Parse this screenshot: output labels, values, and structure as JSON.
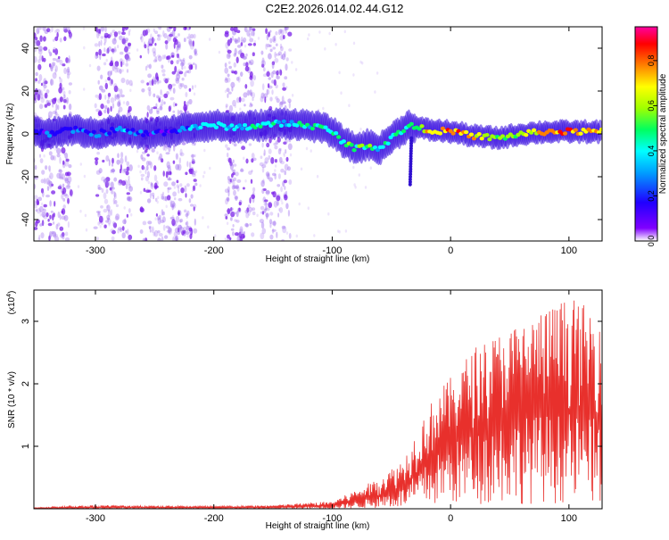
{
  "figure_title": "C2E2.2026.014.02.44.G12",
  "colors": {
    "snr_line": "#e8302c",
    "ridge_low": "#4b00ff",
    "ridge_mid": "#00c8ff",
    "ridge_high": "#ff1010",
    "speckle": "#a070f0"
  },
  "chart_data": [
    {
      "type": "heatmap",
      "name": "spectrogram",
      "xlabel": "Height of straight line (km)",
      "ylabel": "Frequency (Hz)",
      "xlim": [
        -352,
        128
      ],
      "ylim": [
        -50,
        50
      ],
      "xticks": [
        -300,
        -200,
        -100,
        0,
        100
      ],
      "xtick_labels": [
        "-300",
        "-200",
        "-100",
        "0",
        "100"
      ],
      "yticks": [
        -40,
        -20,
        0,
        20,
        40
      ],
      "ytick_labels": [
        "-40",
        "-20",
        "0",
        "20",
        "40"
      ],
      "colorbar": {
        "label": "Normalized spectral amplitude",
        "range": [
          0,
          0.95
        ],
        "ticks": [
          0.0,
          0.2,
          0.4,
          0.6,
          0.8
        ],
        "tick_labels": [
          "0.0",
          "0.2",
          "0.4",
          "0.6",
          "0.8"
        ]
      },
      "ridge": {
        "x": [
          -350,
          -340,
          -320,
          -300,
          -280,
          -260,
          -240,
          -220,
          -200,
          -180,
          -160,
          -140,
          -120,
          -110,
          -100,
          -90,
          -80,
          -70,
          -60,
          -50,
          -40,
          -35,
          -30,
          -20,
          0,
          20,
          40,
          60,
          80,
          100,
          128
        ],
        "freq": [
          1,
          0,
          2,
          0,
          2,
          0,
          1,
          3,
          4,
          3,
          4,
          5,
          4,
          3,
          1,
          -4,
          -7,
          -5,
          -7,
          -2,
          2,
          4,
          3,
          2,
          1,
          -1,
          -2,
          0,
          1,
          1,
          1
        ],
        "amplitude": [
          0.2,
          0.25,
          0.3,
          0.3,
          0.35,
          0.3,
          0.2,
          0.4,
          0.45,
          0.45,
          0.5,
          0.5,
          0.5,
          0.55,
          0.5,
          0.55,
          0.6,
          0.55,
          0.5,
          0.5,
          0.6,
          0.5,
          0.6,
          0.75,
          0.85,
          0.8,
          0.6,
          0.65,
          0.85,
          0.9,
          0.75
        ]
      },
      "noise_bands_x": [
        [
          -352,
          -320
        ],
        [
          -300,
          -270
        ],
        [
          -262,
          -215
        ],
        [
          -190,
          -165
        ],
        [
          -160,
          -135
        ]
      ]
    },
    {
      "type": "line",
      "name": "snr",
      "xlabel": "Height of straight line (km)",
      "ylabel": "SNR (10 * v/v)",
      "multiplier": "(x10",
      "multiplier_exp": "4",
      "multiplier_close": ")",
      "xlim": [
        -352,
        128
      ],
      "ylim": [
        0,
        3.5
      ],
      "xticks": [
        -300,
        -200,
        -100,
        0,
        100
      ],
      "xtick_labels": [
        "-300",
        "-200",
        "-100",
        "0",
        "100"
      ],
      "yticks": [
        1,
        2,
        3
      ],
      "ytick_labels": [
        "1",
        "2",
        "3"
      ],
      "envelope": {
        "x": [
          -352,
          -300,
          -200,
          -150,
          -100,
          -80,
          -60,
          -40,
          -30,
          -20,
          -10,
          0,
          20,
          40,
          60,
          80,
          100,
          128
        ],
        "upper": [
          0.02,
          0.06,
          0.04,
          0.06,
          0.12,
          0.3,
          0.5,
          0.8,
          1.2,
          1.6,
          1.9,
          2.1,
          2.6,
          2.8,
          3.0,
          3.2,
          3.4,
          3.1
        ],
        "mean": [
          0.01,
          0.02,
          0.02,
          0.02,
          0.05,
          0.12,
          0.22,
          0.35,
          0.55,
          0.75,
          0.95,
          1.1,
          1.3,
          1.5,
          1.55,
          1.6,
          1.6,
          1.5
        ]
      }
    }
  ]
}
